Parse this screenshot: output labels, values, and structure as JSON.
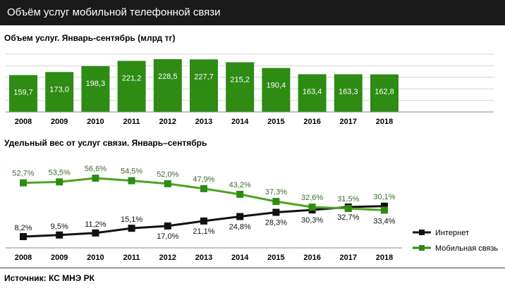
{
  "header": {
    "title": "Объём услуг мобильной телефонной связи"
  },
  "source": "Источник:  КС  МНЭ РК",
  "colors": {
    "bar": "#2e8b14",
    "green_line": "#4aa41e",
    "green_label": "#3f6a2a",
    "black_line": "#111111"
  },
  "chart_data": [
    {
      "type": "bar",
      "title": "Объем услуг. Январь-сентябрь  (млрд тг)",
      "categories": [
        "2008",
        "2009",
        "2010",
        "2011",
        "2012",
        "2013",
        "2014",
        "2015",
        "2016",
        "2017",
        "2018"
      ],
      "values": [
        159.7,
        173.0,
        198.3,
        221.2,
        228.5,
        227.7,
        215.2,
        190.4,
        163.4,
        163.3,
        162.8
      ],
      "value_labels": [
        "159,7",
        "173,0",
        "198,3",
        "221,2",
        "228,5",
        "227,7",
        "215,2",
        "190,4",
        "163,4",
        "163,3",
        "162,8"
      ],
      "grid": true
    },
    {
      "type": "line",
      "title": "Удельный вес от услуг связи. Январь–сентябрь",
      "x": [
        "2008",
        "2009",
        "2010",
        "2011",
        "2012",
        "2013",
        "2014",
        "2015",
        "2016",
        "2017",
        "2018"
      ],
      "series": [
        {
          "name": "Интернет",
          "values": [
            8.2,
            9.5,
            11.2,
            15.1,
            17.0,
            21.1,
            24.8,
            28.3,
            30.3,
            32.7,
            33.4
          ],
          "labels": [
            "8,2%",
            "9,5%",
            "11,2%",
            "15,1%",
            "17,0%",
            "21,1%",
            "24,8%",
            "28,3%",
            "30,3%",
            "32,7%",
            "33,4%"
          ]
        },
        {
          "name": "Мобильная связь",
          "values": [
            52.7,
            53.5,
            56.6,
            54.5,
            52.0,
            47.9,
            43.2,
            37.3,
            32.6,
            31.5,
            30.1
          ],
          "labels": [
            "52,7%",
            "53,5%",
            "56,6%",
            "54,5%",
            "52,0%",
            "47,9%",
            "43,2%",
            "37,3%",
            "32,6%",
            "31,5%",
            "30,1%"
          ]
        }
      ],
      "legend": "bottom-right",
      "grid": false
    }
  ]
}
